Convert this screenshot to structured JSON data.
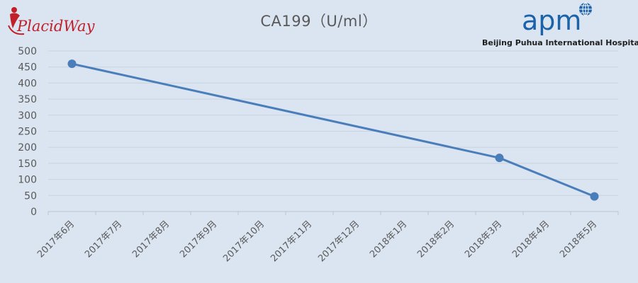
{
  "title": "CA199（U/ml）",
  "logos": {
    "left_brand": "PlacidWay",
    "right_brand": "apm",
    "hospital_name": "Beijing Puhua International Hospital"
  },
  "colors": {
    "background": "#dbe5f1",
    "series": "#4a7ebb",
    "grid": "#c8d3e0",
    "text": "#595959",
    "placidway_red": "#c0202a",
    "apm_blue": "#1b62a8"
  },
  "chart_data": {
    "type": "line",
    "title": "CA199（U/ml）",
    "xlabel": "",
    "ylabel": "",
    "categories": [
      "2017年6月",
      "2017年7月",
      "2017年8月",
      "2017年9月",
      "2017年10月",
      "2017年11月",
      "2017年12月",
      "2018年1月",
      "2018年2月",
      "2018年3月",
      "2018年4月",
      "2018年5月"
    ],
    "yticks": [
      "500",
      "450",
      "400",
      "350",
      "300",
      "250",
      "200",
      "150",
      "100",
      "50",
      "0"
    ],
    "ylim": [
      0,
      500
    ],
    "grid": true,
    "legend": "none",
    "series": [
      {
        "points": [
          {
            "x": "2017年6月",
            "y": 460
          },
          {
            "x": "2018年3月",
            "y": 167
          },
          {
            "x": "2018年5月",
            "y": 47
          }
        ]
      }
    ]
  }
}
